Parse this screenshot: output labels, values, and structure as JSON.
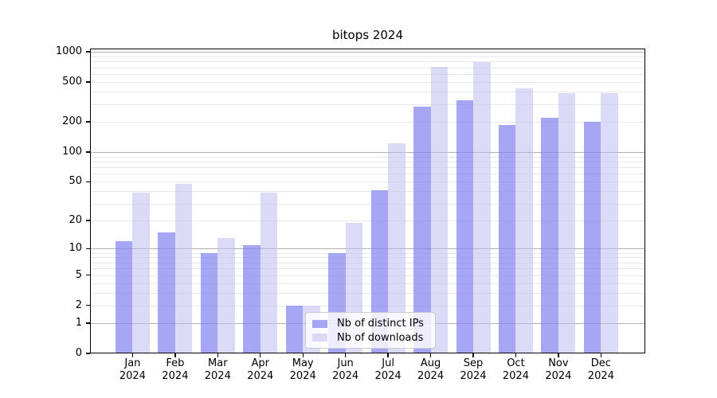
{
  "figure": {
    "title": "bitops 2024"
  },
  "chart_data": {
    "type": "bar",
    "title": "bitops 2024",
    "xlabel": "",
    "ylabel": "",
    "categories": [
      "Jan 2024",
      "Feb 2024",
      "Mar 2024",
      "Apr 2024",
      "May 2024",
      "Jun 2024",
      "Jul 2024",
      "Aug 2024",
      "Sep 2024",
      "Oct 2024",
      "Nov 2024",
      "Dec 2024"
    ],
    "series": [
      {
        "name": "Nb of distinct IPs",
        "color": "#8484f0",
        "color_alpha": 0.72,
        "values": [
          12,
          15,
          9,
          11,
          2,
          9,
          41,
          285,
          330,
          185,
          218,
          200
        ]
      },
      {
        "name": "Nb of downloads",
        "color": "#bebef3",
        "color_alpha": 0.55,
        "values": [
          39,
          48,
          13,
          39,
          2,
          19,
          122,
          705,
          790,
          435,
          390,
          390
        ]
      }
    ],
    "yscale": "log1p",
    "ylim": [
      0,
      1100
    ],
    "ytick_values": [
      0,
      1,
      2,
      5,
      10,
      20,
      50,
      100,
      200,
      500,
      1000
    ],
    "ytick_labels": [
      "0",
      "1",
      "2",
      "5",
      "10",
      "20",
      "50",
      "100",
      "200",
      "500",
      "1000"
    ],
    "grid": {
      "horizontal": true,
      "vertical": false,
      "major_values": [
        1,
        10,
        100,
        1000
      ],
      "major_color": "#b0b0b0",
      "minor_color": "#e8e8e8"
    },
    "legend": {
      "visible": true,
      "entries": [
        "Nb of distinct IPs",
        "Nb of downloads"
      ],
      "position": "bottom-center-inside"
    }
  }
}
